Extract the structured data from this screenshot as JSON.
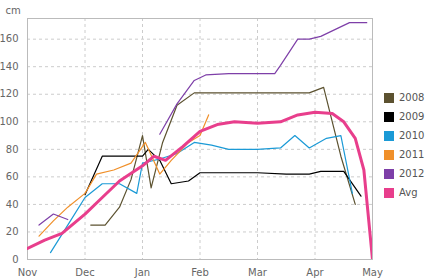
{
  "chart_data": {
    "type": "line",
    "y_label": "cm",
    "xlim": [
      0,
      6
    ],
    "xticks": [
      {
        "value": 0,
        "label": "Nov"
      },
      {
        "value": 1,
        "label": "Dec"
      },
      {
        "value": 2,
        "label": "Jan"
      },
      {
        "value": 3,
        "label": "Feb"
      },
      {
        "value": 4,
        "label": "Mar"
      },
      {
        "value": 5,
        "label": "Apr"
      },
      {
        "value": 6,
        "label": "May"
      }
    ],
    "ylim": [
      0,
      175
    ],
    "yticks": [
      0,
      20,
      40,
      60,
      80,
      100,
      120,
      140,
      160
    ],
    "grid": true,
    "legend": "right",
    "series": [
      {
        "name": "2008",
        "color": "#5c5230",
        "line_style": "solid",
        "x": [
          1.1,
          1.35,
          1.6,
          1.8,
          2.0,
          2.15,
          2.35,
          2.6,
          2.9,
          3.5,
          4.0,
          4.5,
          4.9,
          5.15,
          5.45,
          5.7
        ],
        "values": [
          25,
          25,
          38,
          58,
          90,
          52,
          85,
          112,
          121,
          121,
          121,
          121,
          121,
          125,
          75,
          40
        ]
      },
      {
        "name": "2009",
        "color": "#000000",
        "line_style": "solid",
        "x": [
          1.0,
          1.3,
          2.0,
          2.1,
          2.3,
          2.5,
          2.8,
          3.0,
          3.5,
          4.0,
          4.5,
          4.9,
          5.1,
          5.5,
          5.8
        ],
        "values": [
          47,
          75,
          75,
          80,
          72,
          55,
          57,
          63,
          63,
          63,
          62,
          62,
          64,
          64,
          46
        ]
      },
      {
        "name": "2010",
        "color": "#1b9ad6",
        "line_style": "solid",
        "x": [
          0.4,
          0.7,
          1.0,
          1.3,
          1.6,
          1.9,
          2.0,
          2.3,
          2.6,
          2.9,
          3.2,
          3.5,
          4.0,
          4.4,
          4.65,
          4.9,
          5.2,
          5.45,
          5.65
        ],
        "values": [
          5,
          25,
          45,
          55,
          55,
          48,
          70,
          73,
          77,
          85,
          83,
          80,
          80,
          81,
          90,
          81,
          88,
          90,
          48
        ]
      },
      {
        "name": "2011",
        "color": "#f0902a",
        "line_style": "solid",
        "x": [
          0.2,
          0.45,
          0.7,
          1.0,
          1.2,
          1.5,
          1.8,
          2.05,
          2.3,
          2.5,
          2.8,
          3.0,
          3.15
        ],
        "values": [
          17,
          28,
          38,
          48,
          62,
          65,
          70,
          85,
          62,
          72,
          85,
          90,
          105
        ]
      },
      {
        "name": "2012",
        "color": "#7e3fa8",
        "line_style": "solid",
        "x": [
          0.2,
          0.45,
          0.7,
          1.5,
          2.3,
          2.6,
          2.9,
          3.1,
          3.5,
          4.0,
          4.3,
          4.4,
          4.7,
          4.9,
          5.1,
          5.4,
          5.6,
          5.9
        ],
        "values": [
          25,
          33,
          29,
          null,
          91,
          113,
          130,
          134,
          135,
          135,
          135,
          141,
          160,
          160,
          162,
          168,
          172,
          172
        ]
      },
      {
        "name": "Avg",
        "color": "#e83e8c",
        "line_style": "thick",
        "x": [
          0.0,
          0.3,
          0.6,
          1.0,
          1.3,
          1.6,
          2.0,
          2.2,
          2.4,
          2.7,
          3.0,
          3.3,
          3.6,
          4.0,
          4.4,
          4.7,
          5.0,
          5.3,
          5.5,
          5.7,
          5.85,
          6.0
        ],
        "values": [
          8,
          14,
          19,
          33,
          45,
          57,
          68,
          75,
          72,
          82,
          93,
          98,
          100,
          99,
          100,
          105,
          107,
          106,
          100,
          88,
          65,
          0
        ]
      }
    ]
  }
}
